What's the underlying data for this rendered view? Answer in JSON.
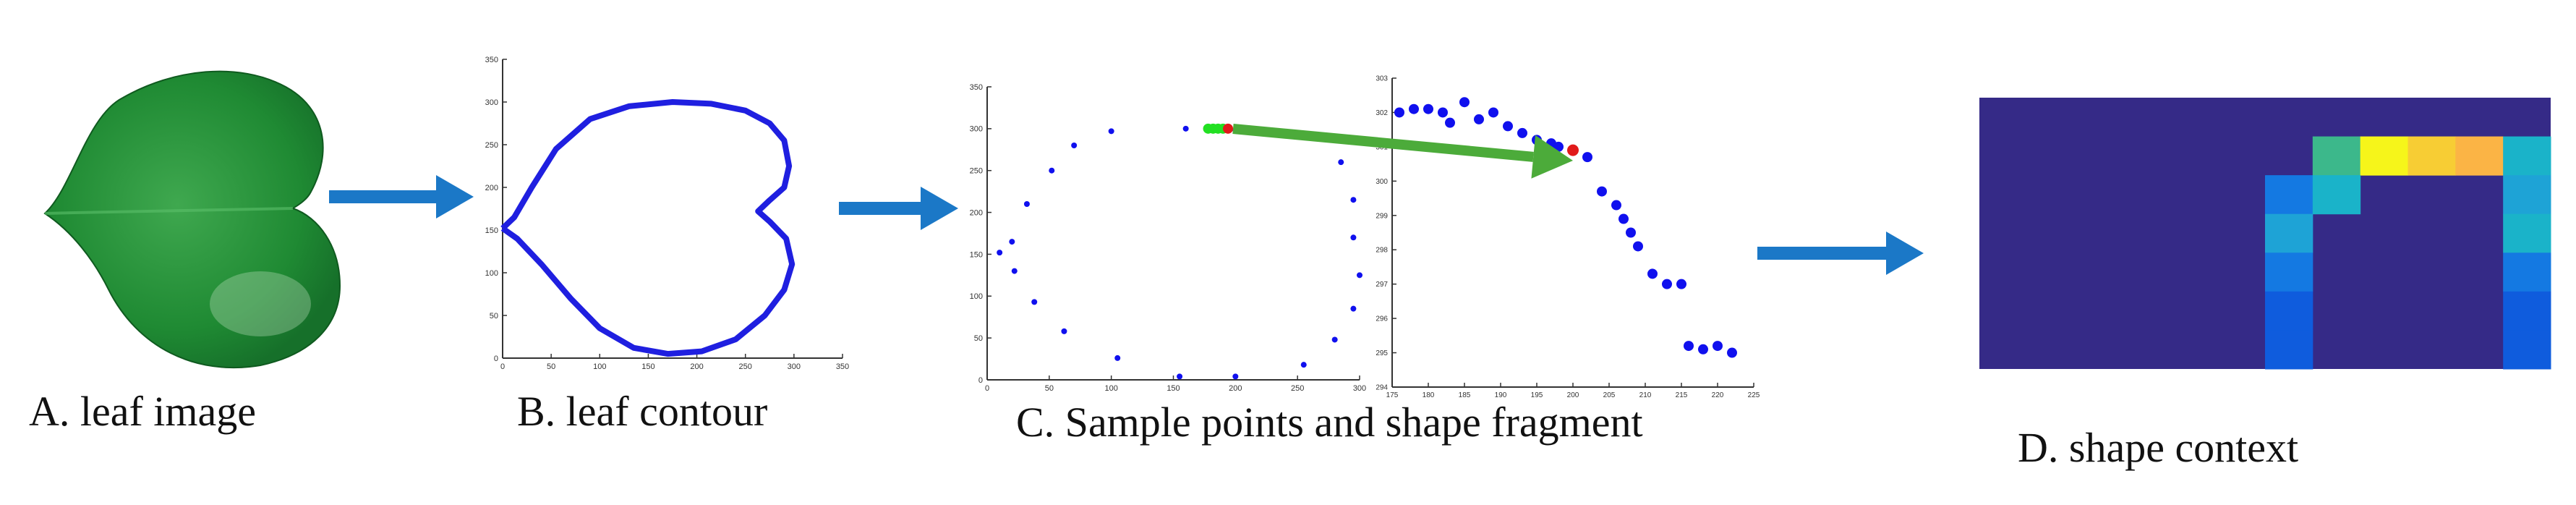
{
  "captions": {
    "a": "A. leaf image",
    "b": "B. leaf contour",
    "c": "C. Sample points and shape fragment",
    "d": "D. shape context"
  },
  "panel_b": {
    "x_ticks": [
      "0",
      "50",
      "100",
      "150",
      "200",
      "250",
      "300",
      "350"
    ],
    "y_ticks": [
      "0",
      "50",
      "100",
      "150",
      "200",
      "250",
      "300",
      "350"
    ],
    "contour_color": "#1f1fe0"
  },
  "panel_c_left": {
    "x_ticks": [
      "0",
      "50",
      "100",
      "150",
      "200",
      "250",
      "300"
    ],
    "y_ticks": [
      "0",
      "50",
      "100",
      "150",
      "200",
      "250",
      "300",
      "350"
    ],
    "points": [
      [
        10,
        152
      ],
      [
        20,
        165
      ],
      [
        32,
        210
      ],
      [
        52,
        250
      ],
      [
        70,
        280
      ],
      [
        100,
        297
      ],
      [
        160,
        300
      ],
      [
        185,
        300
      ],
      [
        190,
        300
      ],
      [
        200,
        298
      ],
      [
        260,
        290
      ],
      [
        285,
        260
      ],
      [
        295,
        215
      ],
      [
        295,
        170
      ],
      [
        300,
        125
      ],
      [
        295,
        85
      ],
      [
        280,
        48
      ],
      [
        255,
        18
      ],
      [
        200,
        4
      ],
      [
        155,
        4
      ],
      [
        105,
        26
      ],
      [
        62,
        58
      ],
      [
        38,
        93
      ],
      [
        22,
        130
      ]
    ]
  },
  "panel_c_right": {
    "x_ticks": [
      "175",
      "180",
      "185",
      "190",
      "195",
      "200",
      "205",
      "210",
      "215",
      "220",
      "225"
    ],
    "y_ticks": [
      "294",
      "295",
      "296",
      "297",
      "298",
      "299",
      "300",
      "301",
      "302",
      "303"
    ],
    "points": [
      [
        176,
        302
      ],
      [
        178,
        302.1
      ],
      [
        180,
        302.1
      ],
      [
        182,
        302
      ],
      [
        183,
        301.7
      ],
      [
        185,
        302.3
      ],
      [
        187,
        301.8
      ],
      [
        189,
        302
      ],
      [
        191,
        301.6
      ],
      [
        193,
        301.4
      ],
      [
        195,
        301.2
      ],
      [
        197,
        301.1
      ],
      [
        198,
        301
      ],
      [
        200,
        300.9
      ],
      [
        202,
        300.7
      ],
      [
        204,
        299.7
      ],
      [
        206,
        299.3
      ],
      [
        207,
        298.9
      ],
      [
        208,
        298.5
      ],
      [
        209,
        298.1
      ],
      [
        211,
        297.3
      ],
      [
        213,
        297
      ],
      [
        215,
        297
      ],
      [
        216,
        295.2
      ],
      [
        218,
        295.1
      ],
      [
        220,
        295.2
      ],
      [
        222,
        295
      ]
    ],
    "highlight_point": [
      200,
      300.9
    ],
    "point_color": "#1010ee",
    "highlight_color": "#e11a1a"
  },
  "panel_d": {
    "grid": [
      [
        0,
        0,
        0,
        0,
        0,
        0,
        0,
        0,
        0,
        0,
        0,
        0
      ],
      [
        0,
        0,
        0,
        0,
        0,
        0,
        0,
        6,
        9,
        8,
        7,
        4
      ],
      [
        0,
        0,
        0,
        0,
        0,
        0,
        2,
        4,
        0,
        0,
        0,
        3
      ],
      [
        0,
        0,
        0,
        0,
        0,
        0,
        3,
        0,
        0,
        0,
        0,
        4
      ],
      [
        0,
        0,
        0,
        0,
        0,
        0,
        2,
        0,
        0,
        0,
        0,
        2
      ],
      [
        0,
        0,
        0,
        0,
        0,
        0,
        1,
        0,
        0,
        0,
        0,
        1
      ],
      [
        0,
        0,
        0,
        0,
        0,
        0,
        1,
        0,
        0,
        0,
        0,
        1
      ]
    ],
    "colors": {
      "0": "#352a87",
      "1": "#0f5cdd",
      "2": "#1479e2",
      "3": "#1ea3d6",
      "4": "#1ab3c9",
      "6": "#3cb88b",
      "7": "#fbb445",
      "8": "#f7cd34",
      "9": "#f6f51a"
    }
  },
  "colors": {
    "flow_arrow": "#1b78c7",
    "fragment_arrow": "#4cab3a",
    "fragment_dots": "#22e022",
    "leaf_dark": "#1b7a2c",
    "leaf_light": "#3fa84f"
  }
}
